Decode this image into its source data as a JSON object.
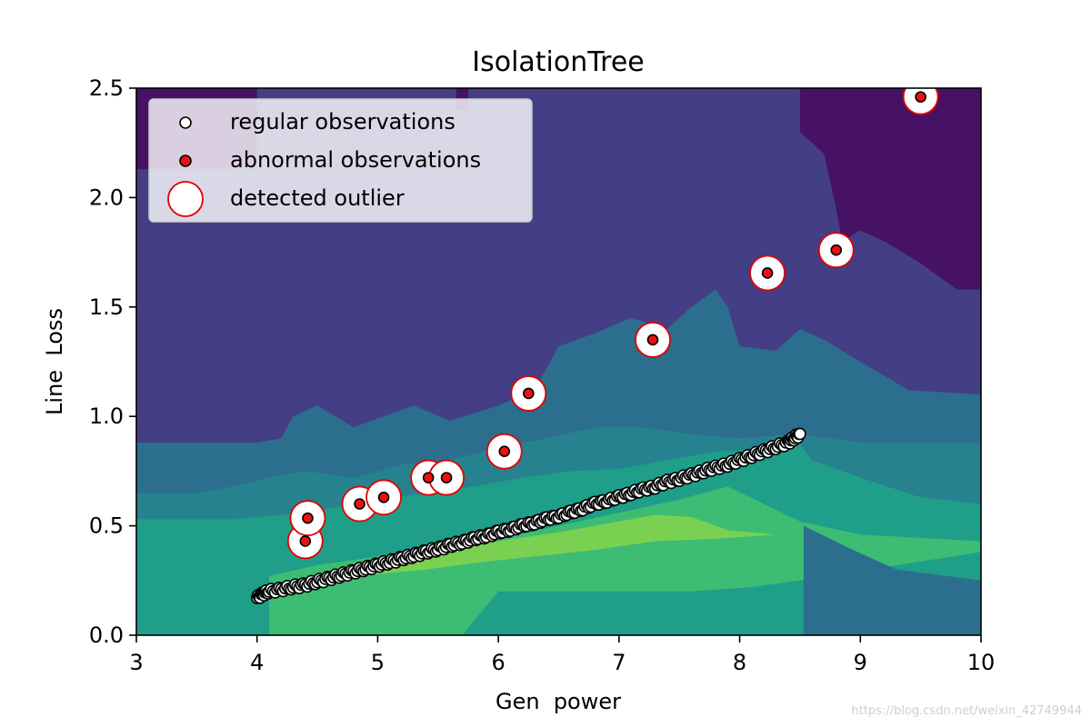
{
  "chart_data": {
    "type": "scatter",
    "title": "IsolationTree",
    "xlabel": "Gen  power",
    "ylabel": "Line  Loss",
    "xlim": [
      3,
      10
    ],
    "ylim": [
      0,
      2.5
    ],
    "x_ticks": [
      "3",
      "4",
      "5",
      "6",
      "7",
      "8",
      "9",
      "10"
    ],
    "y_ticks": [
      "0.0",
      "0.5",
      "1.0",
      "1.5",
      "2.0",
      "2.5"
    ],
    "legend_position": "top-left",
    "legend": [
      {
        "label": "regular observations",
        "marker": "white-circle"
      },
      {
        "label": "abnormal observations",
        "marker": "red-circle"
      },
      {
        "label": "detected outlier",
        "marker": "large-hollow-red-circle"
      }
    ],
    "grid": false,
    "background_colors": [
      "#471164",
      "#433e85",
      "#2c6e8e",
      "#26828e",
      "#1f9e89",
      "#3dbc74",
      "#7ad151"
    ],
    "series": [
      {
        "name": "regular observations",
        "color": "#ffffff",
        "edge_color": "#000000",
        "x": [
          4.0,
          4.05,
          4.1,
          4.2,
          4.3,
          4.4,
          4.5,
          4.6,
          4.7,
          4.8,
          4.9,
          5.0,
          5.1,
          5.2,
          5.3,
          5.4,
          5.5,
          5.6,
          5.7,
          5.8,
          5.9,
          6.0,
          6.1,
          6.2,
          6.3,
          6.4,
          6.5,
          6.6,
          6.7,
          6.8,
          6.9,
          7.0,
          7.1,
          7.2,
          7.3,
          7.4,
          7.5,
          7.6,
          7.7,
          7.8,
          7.9,
          8.0,
          8.1,
          8.2,
          8.3,
          8.4,
          8.45,
          8.5
        ],
        "y": [
          0.17,
          0.19,
          0.2,
          0.21,
          0.22,
          0.23,
          0.245,
          0.26,
          0.275,
          0.29,
          0.305,
          0.32,
          0.335,
          0.35,
          0.365,
          0.38,
          0.395,
          0.41,
          0.425,
          0.44,
          0.455,
          0.47,
          0.485,
          0.5,
          0.515,
          0.53,
          0.545,
          0.56,
          0.58,
          0.6,
          0.615,
          0.63,
          0.65,
          0.665,
          0.68,
          0.7,
          0.715,
          0.73,
          0.75,
          0.765,
          0.78,
          0.8,
          0.82,
          0.84,
          0.86,
          0.88,
          0.9,
          0.92
        ]
      },
      {
        "name": "abnormal observations",
        "color": "#e8110f",
        "edge_color": "#000000",
        "x": [
          4.4,
          4.42,
          4.85,
          5.05,
          5.42,
          5.57,
          6.05,
          6.25,
          7.28,
          8.23,
          8.8,
          9.5
        ],
        "y": [
          0.43,
          0.535,
          0.6,
          0.63,
          0.72,
          0.72,
          0.84,
          1.105,
          1.35,
          1.655,
          1.76,
          2.46
        ]
      }
    ],
    "detected_outliers": {
      "x": [
        4.4,
        4.42,
        4.85,
        5.05,
        5.42,
        5.57,
        6.05,
        6.25,
        7.28,
        8.23,
        8.8,
        9.5
      ],
      "y": [
        0.43,
        0.535,
        0.6,
        0.63,
        0.72,
        0.72,
        0.84,
        1.105,
        1.35,
        1.655,
        1.76,
        2.46
      ]
    }
  },
  "watermark": "https://blog.csdn.net/weixin_42749944"
}
